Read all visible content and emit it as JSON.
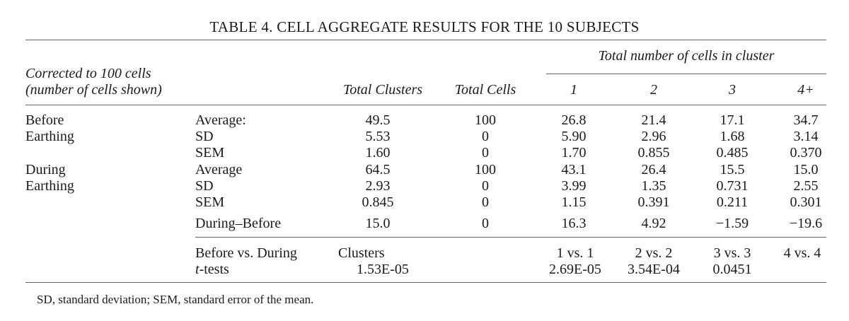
{
  "title": "TABLE 4. CELL AGGREGATE RESULTS FOR THE 10 SUBJECTS",
  "header": {
    "row_label_line1": "Corrected to 100 cells",
    "row_label_line2": "(number of cells shown)",
    "group_header": "Total number of cells in cluster",
    "columns": [
      "Total Clusters",
      "Total Cells",
      "1",
      "2",
      "3",
      "4+"
    ]
  },
  "groups": [
    {
      "label_line1": "Before",
      "label_line2": "Earthing",
      "rows": [
        {
          "label": "Average:",
          "values": [
            "49.5",
            "100",
            "26.8",
            "21.4",
            "17.1",
            "34.7"
          ]
        },
        {
          "label": "SD",
          "values": [
            "5.53",
            "0",
            "5.90",
            "2.96",
            "1.68",
            "3.14"
          ]
        },
        {
          "label": "SEM",
          "values": [
            "1.60",
            "0",
            "1.70",
            "0.855",
            "0.485",
            "0.370"
          ]
        }
      ]
    },
    {
      "label_line1": "During",
      "label_line2": "Earthing",
      "rows": [
        {
          "label": "Average",
          "values": [
            "64.5",
            "100",
            "43.1",
            "26.4",
            "15.5",
            "15.0"
          ]
        },
        {
          "label": "SD",
          "values": [
            "2.93",
            "0",
            "3.99",
            "1.35",
            "0.731",
            "2.55"
          ]
        },
        {
          "label": "SEM",
          "values": [
            "0.845",
            "0",
            "1.15",
            "0.391",
            "0.211",
            "0.301"
          ]
        }
      ]
    }
  ],
  "diff_row": {
    "label": "During–Before",
    "values": [
      "15.0",
      "0",
      "16.3",
      "4.92",
      "−1.59",
      "−19.6"
    ]
  },
  "ttest": {
    "label_line1": "Before vs. During",
    "label_line2_prefix": "t",
    "label_line2_suffix": "-tests",
    "clusters_label": "Clusters",
    "clusters_value": "1.53E-05",
    "comparisons": [
      "1 vs. 1",
      "2 vs. 2",
      "3 vs. 3",
      "4 vs. 4"
    ],
    "pvalues": [
      "2.69E-05",
      "3.54E-04",
      "0.0451",
      ""
    ]
  },
  "footnote": "SD, standard deviation; SEM, standard error of the mean."
}
